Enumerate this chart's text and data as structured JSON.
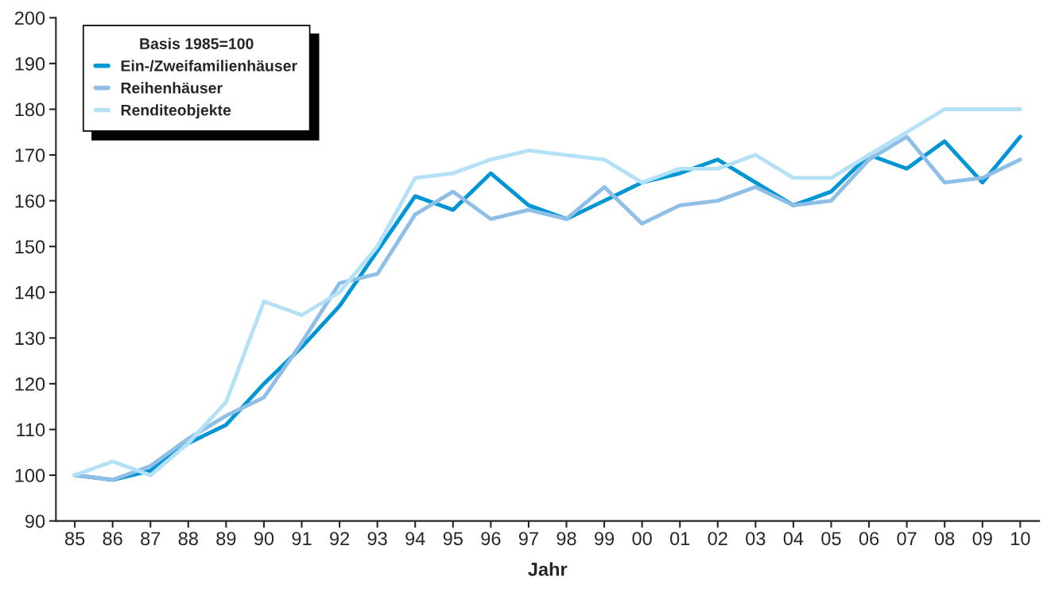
{
  "chart_data": {
    "type": "line",
    "xlabel": "Jahr",
    "legend_title": "Basis 1985=100",
    "legend": "top left",
    "grid": false,
    "marker": "none",
    "line_style": "solid",
    "categories": [
      "85",
      "86",
      "87",
      "88",
      "89",
      "90",
      "91",
      "92",
      "93",
      "94",
      "95",
      "96",
      "97",
      "98",
      "99",
      "00",
      "01",
      "02",
      "03",
      "04",
      "05",
      "06",
      "07",
      "08",
      "09",
      "10"
    ],
    "ylim": [
      90,
      200
    ],
    "yticks": [
      90,
      100,
      110,
      120,
      130,
      140,
      150,
      160,
      170,
      180,
      190,
      200
    ],
    "series": [
      {
        "name": "Ein-/Zweifamilienhäuser",
        "color": "#0096d6",
        "values": [
          100,
          99,
          101,
          107,
          111,
          120,
          128,
          137,
          149,
          161,
          158,
          166,
          159,
          156,
          160,
          164,
          166,
          169,
          164,
          159,
          162,
          170,
          167,
          173,
          164,
          174
        ]
      },
      {
        "name": "Reihenhäuser",
        "color": "#8fbfe6",
        "values": [
          100,
          99,
          102,
          108,
          113,
          117,
          129,
          142,
          144,
          157,
          162,
          156,
          158,
          156,
          163,
          155,
          159,
          160,
          163,
          159,
          160,
          169,
          174,
          164,
          165,
          169
        ]
      },
      {
        "name": "Renditeobjekte",
        "color": "#b5e1f7",
        "values": [
          100,
          103,
          100,
          107,
          116,
          138,
          135,
          140,
          150,
          165,
          166,
          169,
          171,
          170,
          169,
          164,
          167,
          167,
          170,
          165,
          165,
          170,
          175,
          180,
          180,
          180
        ]
      }
    ]
  }
}
